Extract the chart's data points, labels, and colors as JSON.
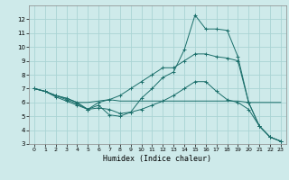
{
  "xlabel": "Humidex (Indice chaleur)",
  "bg_color": "#ceeaea",
  "grid_color": "#aad4d4",
  "line_color": "#1a6e6a",
  "xlim": [
    -0.5,
    23.5
  ],
  "ylim": [
    3,
    13
  ],
  "x_ticks": [
    0,
    1,
    2,
    3,
    4,
    5,
    6,
    7,
    8,
    9,
    10,
    11,
    12,
    13,
    14,
    15,
    16,
    17,
    18,
    19,
    20,
    21,
    22,
    23
  ],
  "y_ticks": [
    3,
    4,
    5,
    6,
    7,
    8,
    9,
    10,
    11,
    12
  ],
  "line1_x": [
    0,
    1,
    2,
    3,
    4,
    5,
    6,
    7,
    8,
    9,
    10,
    11,
    12,
    13,
    14,
    15,
    16,
    17,
    18,
    19,
    20,
    21,
    22,
    23
  ],
  "line1_y": [
    7.0,
    6.8,
    6.5,
    6.3,
    6.0,
    6.0,
    6.1,
    6.2,
    6.1,
    6.1,
    6.1,
    6.1,
    6.1,
    6.1,
    6.1,
    6.1,
    6.1,
    6.1,
    6.1,
    6.1,
    6.0,
    6.0,
    6.0,
    6.0
  ],
  "line2_x": [
    0,
    1,
    2,
    3,
    4,
    5,
    6,
    7,
    8,
    9,
    10,
    11,
    12,
    13,
    14,
    15,
    16,
    17,
    18,
    19,
    20,
    21,
    22,
    23
  ],
  "line2_y": [
    7.0,
    6.8,
    6.5,
    6.2,
    5.9,
    5.5,
    5.6,
    5.5,
    5.2,
    5.3,
    5.5,
    5.8,
    6.1,
    6.5,
    7.0,
    7.5,
    7.5,
    6.8,
    6.2,
    6.0,
    5.5,
    4.3,
    3.5,
    3.2
  ],
  "line3_x": [
    0,
    1,
    2,
    3,
    4,
    5,
    6,
    7,
    8,
    9,
    10,
    11,
    12,
    13,
    14,
    15,
    16,
    17,
    18,
    19,
    20,
    21,
    22,
    23
  ],
  "line3_y": [
    7.0,
    6.8,
    6.5,
    6.3,
    6.0,
    5.5,
    5.8,
    5.1,
    5.0,
    5.3,
    6.3,
    7.0,
    7.8,
    8.2,
    9.8,
    12.3,
    11.3,
    11.3,
    11.2,
    9.3,
    6.0,
    4.3,
    3.5,
    3.2
  ],
  "line4_x": [
    0,
    1,
    2,
    3,
    4,
    5,
    6,
    7,
    8,
    9,
    10,
    11,
    12,
    13,
    14,
    15,
    16,
    17,
    18,
    19,
    20,
    21,
    22,
    23
  ],
  "line4_y": [
    7.0,
    6.8,
    6.4,
    6.1,
    5.8,
    5.5,
    6.0,
    6.2,
    6.5,
    7.0,
    7.5,
    8.0,
    8.5,
    8.5,
    9.0,
    9.5,
    9.5,
    9.3,
    9.2,
    9.0,
    6.0,
    4.3,
    3.5,
    3.2
  ]
}
